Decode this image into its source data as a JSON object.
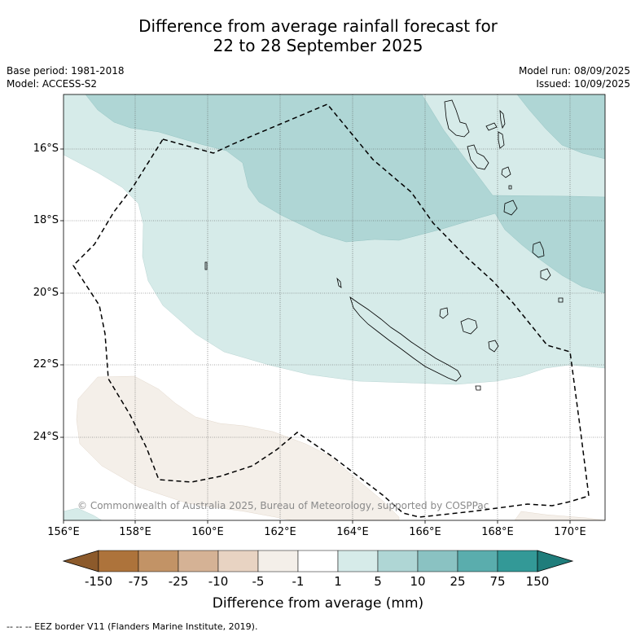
{
  "title_line1": "Difference from average rainfall forecast for",
  "title_line2": "22 to 28 September 2025",
  "base_period": "Base period: 1981-2018",
  "model": "Model: ACCESS-S2",
  "model_run": "Model run: 08/09/2025",
  "issued": "Issued: 10/09/2025",
  "copyright": "© Commonwealth of Australia 2025, Bureau of Meteorology, supported by COSPPac",
  "latitude_labels": [
    "16°S",
    "18°S",
    "20°S",
    "22°S",
    "24°S"
  ],
  "longitude_labels": [
    "156°E",
    "158°E",
    "160°E",
    "162°E",
    "164°E",
    "166°E",
    "168°E",
    "170°E"
  ],
  "colorbar": {
    "title": "Difference from average (mm)",
    "tick_labels": [
      "-150",
      "-75",
      "-25",
      "-10",
      "-5",
      "-1",
      "1",
      "5",
      "10",
      "25",
      "75",
      "150"
    ],
    "colors": [
      "#8c5a2b",
      "#ad733b",
      "#c29366",
      "#d5b295",
      "#e8d3c2",
      "#f4efe9",
      "#ffffff",
      "#d6ebe9",
      "#afd6d5",
      "#8ac2c2",
      "#5aadad",
      "#339997",
      "#1f7d7b"
    ]
  },
  "footnote": "--  --  -- EEZ border V11 (Flanders Marine Institute, 2019).",
  "map_fill_colors": {
    "light_teal": "#d6ebe9",
    "teal": "#afd6d5",
    "light_brown": "#f4efe9"
  }
}
